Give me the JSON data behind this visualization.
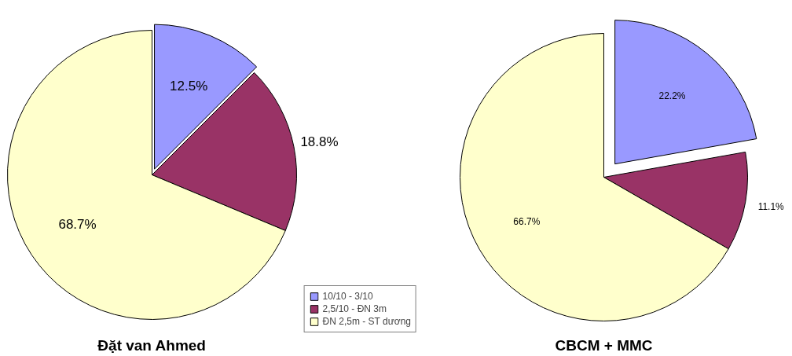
{
  "chart_data": [
    {
      "type": "pie",
      "title": "Đặt van Ahmed",
      "categories": [
        "10/10 - 3/10",
        "2,5/10 - ĐN 3m",
        "ĐN 2,5m - ST dương"
      ],
      "values": [
        12.5,
        18.8,
        68.7
      ],
      "value_labels": [
        "12.5%",
        "18.8%",
        "68.7%"
      ],
      "colors": [
        "#9999ff",
        "#993366",
        "#ffffcc"
      ],
      "legend": "bottom right"
    },
    {
      "type": "pie",
      "title": "CBCM + MMC",
      "categories": [
        null,
        null,
        null
      ],
      "values": [
        22.2,
        11.1,
        66.7
      ],
      "value_labels": [
        "22.2%",
        "11.1%",
        "66.7%"
      ],
      "colors": [
        "#9999ff",
        "#993366",
        "#ffffcc"
      ]
    }
  ]
}
